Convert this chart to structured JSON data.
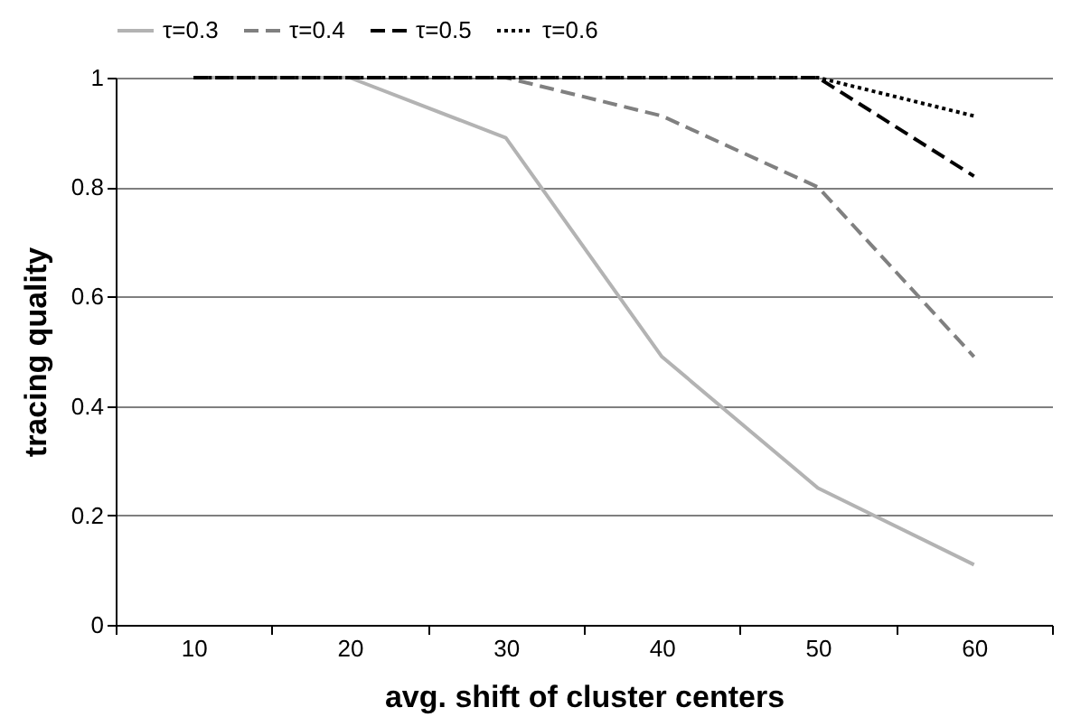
{
  "chart_data": {
    "type": "line",
    "xlabel": "avg. shift of cluster centers",
    "ylabel": "tracing quality",
    "categories": [
      "10",
      "20",
      "30",
      "40",
      "50",
      "60"
    ],
    "series": [
      {
        "name": "τ=0.3",
        "color": "#b3b3b3",
        "line_style": "solid",
        "values": [
          1,
          1,
          0.89,
          0.49,
          0.25,
          0.11
        ]
      },
      {
        "name": "τ=0.4",
        "color": "#808080",
        "line_style": "dashed",
        "values": [
          1,
          1,
          1,
          0.93,
          0.8,
          0.49
        ]
      },
      {
        "name": "τ=0.5",
        "color": "#000000",
        "line_style": "dashed",
        "values": [
          1,
          1,
          1,
          1,
          1,
          0.82
        ]
      },
      {
        "name": "τ=0.6",
        "color": "#000000",
        "line_style": "dotted",
        "values": [
          1,
          1,
          1,
          1,
          1,
          0.93
        ]
      }
    ],
    "ylim": [
      0,
      1
    ],
    "yticks": [
      0,
      0.2,
      0.4,
      0.6,
      0.8,
      1
    ],
    "grid": "y",
    "legend": "top",
    "marker": "none"
  }
}
